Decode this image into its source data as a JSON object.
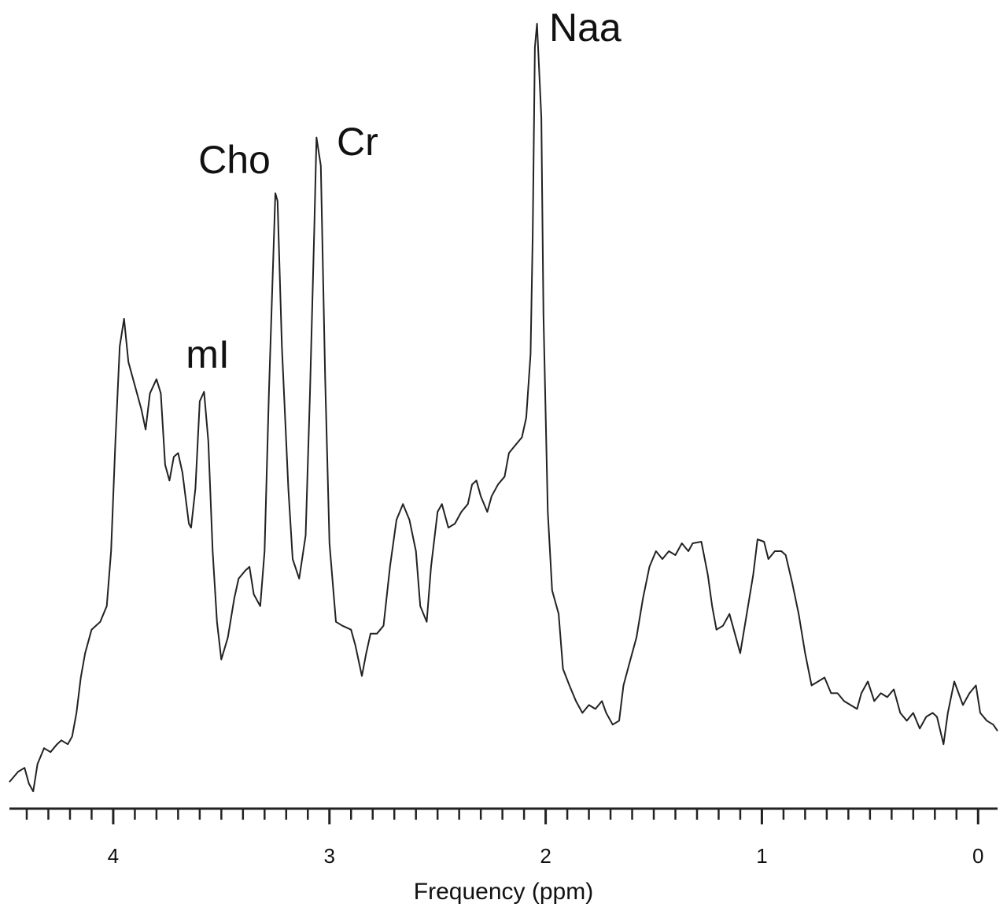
{
  "chart_data": {
    "type": "line",
    "xlabel": "Frequency (ppm)",
    "xlim": [
      4.48,
      -0.09
    ],
    "xticks": [
      4,
      3,
      2,
      1,
      0
    ],
    "xminorticks": [
      4.4,
      4.3,
      4.2,
      4.1,
      3.9,
      3.8,
      3.7,
      3.6,
      3.5,
      3.4,
      3.3,
      3.2,
      3.1,
      2.9,
      2.8,
      2.7,
      2.6,
      2.5,
      2.4,
      2.3,
      2.2,
      2.1,
      1.9,
      1.8,
      1.7,
      1.6,
      1.5,
      1.4,
      1.3,
      1.2,
      1.1,
      0.9,
      0.8,
      0.7,
      0.6,
      0.5,
      0.4,
      0.3,
      0.2,
      0.1
    ],
    "ylim": [
      0,
      100
    ],
    "color": "#222222",
    "annotations": [
      "Naa",
      "Cr",
      "Cho",
      "mI"
    ],
    "x": [
      4.48,
      4.44,
      4.41,
      4.39,
      4.37,
      4.35,
      4.32,
      4.29,
      4.26,
      4.24,
      4.21,
      4.19,
      4.17,
      4.15,
      4.13,
      4.1,
      4.06,
      4.03,
      4.01,
      3.99,
      3.97,
      3.95,
      3.93,
      3.9,
      3.87,
      3.85,
      3.83,
      3.8,
      3.78,
      3.76,
      3.74,
      3.72,
      3.7,
      3.68,
      3.65,
      3.64,
      3.62,
      3.6,
      3.58,
      3.56,
      3.54,
      3.52,
      3.5,
      3.47,
      3.44,
      3.42,
      3.39,
      3.37,
      3.35,
      3.32,
      3.3,
      3.28,
      3.25,
      3.24,
      3.22,
      3.19,
      3.17,
      3.14,
      3.11,
      3.09,
      3.07,
      3.06,
      3.04,
      3.02,
      3.0,
      2.97,
      2.94,
      2.9,
      2.88,
      2.85,
      2.83,
      2.81,
      2.78,
      2.75,
      2.72,
      2.69,
      2.66,
      2.63,
      2.6,
      2.58,
      2.55,
      2.53,
      2.5,
      2.48,
      2.45,
      2.42,
      2.39,
      2.36,
      2.34,
      2.32,
      2.3,
      2.27,
      2.25,
      2.22,
      2.19,
      2.17,
      2.14,
      2.11,
      2.09,
      2.07,
      2.06,
      2.05,
      2.04,
      2.02,
      2.01,
      1.99,
      1.97,
      1.94,
      1.92,
      1.89,
      1.86,
      1.83,
      1.8,
      1.77,
      1.74,
      1.72,
      1.69,
      1.66,
      1.64,
      1.61,
      1.58,
      1.55,
      1.52,
      1.49,
      1.46,
      1.43,
      1.4,
      1.37,
      1.34,
      1.32,
      1.28,
      1.25,
      1.23,
      1.21,
      1.18,
      1.15,
      1.13,
      1.1,
      1.07,
      1.04,
      1.02,
      0.99,
      0.97,
      0.94,
      0.91,
      0.89,
      0.86,
      0.83,
      0.8,
      0.77,
      0.74,
      0.71,
      0.68,
      0.65,
      0.62,
      0.59,
      0.56,
      0.54,
      0.51,
      0.48,
      0.45,
      0.42,
      0.39,
      0.36,
      0.33,
      0.3,
      0.27,
      0.24,
      0.21,
      0.19,
      0.16,
      0.14,
      0.11,
      0.09,
      0.07,
      0.04,
      0.01,
      -0.01,
      -0.04,
      -0.07,
      -0.09
    ],
    "values": [
      3.4,
      4.7,
      5.2,
      3.2,
      2.2,
      5.7,
      7.7,
      7.2,
      8.2,
      8.7,
      8.2,
      9.2,
      12.2,
      16.7,
      19.8,
      22.8,
      23.8,
      25.8,
      32.8,
      46.8,
      58.9,
      62.4,
      56.9,
      53.9,
      50.9,
      48.3,
      52.9,
      54.7,
      52.9,
      43.8,
      41.8,
      44.8,
      45.3,
      42.8,
      36.3,
      35.8,
      40.8,
      51.9,
      53.1,
      46.8,
      32.8,
      23.8,
      19.0,
      21.8,
      26.8,
      29.3,
      30.3,
      30.8,
      27.3,
      25.8,
      32.8,
      52.9,
      78.4,
      77.4,
      58.9,
      40.8,
      31.8,
      29.3,
      34.8,
      52.9,
      73.9,
      85.5,
      81.9,
      54.9,
      33.8,
      23.8,
      23.3,
      22.8,
      20.8,
      16.9,
      19.8,
      22.3,
      22.3,
      23.3,
      30.8,
      36.8,
      38.8,
      36.8,
      32.8,
      25.8,
      23.8,
      30.8,
      37.8,
      38.8,
      35.8,
      36.3,
      37.8,
      38.8,
      41.3,
      41.8,
      39.8,
      37.8,
      39.8,
      41.3,
      42.3,
      45.3,
      46.3,
      47.3,
      49.8,
      57.9,
      72.9,
      97.0,
      100.0,
      88.0,
      62.9,
      37.8,
      27.8,
      24.8,
      17.8,
      15.7,
      13.7,
      12.2,
      13.2,
      12.7,
      13.7,
      12.2,
      10.7,
      11.2,
      15.7,
      18.8,
      21.8,
      26.8,
      30.8,
      32.8,
      31.8,
      32.8,
      32.3,
      33.8,
      32.8,
      33.8,
      34.0,
      29.8,
      25.8,
      22.8,
      23.3,
      24.8,
      22.8,
      19.8,
      24.8,
      29.8,
      34.3,
      34.0,
      31.8,
      32.8,
      32.8,
      32.3,
      28.8,
      24.8,
      19.8,
      15.7,
      16.2,
      16.7,
      14.7,
      14.7,
      13.7,
      13.2,
      12.7,
      14.7,
      16.2,
      13.7,
      14.7,
      14.2,
      15.2,
      12.2,
      11.2,
      12.2,
      10.2,
      11.7,
      12.2,
      11.7,
      8.2,
      12.2,
      16.2,
      14.7,
      13.2,
      14.7,
      15.7,
      12.2,
      11.2,
      10.7,
      9.9
    ]
  }
}
